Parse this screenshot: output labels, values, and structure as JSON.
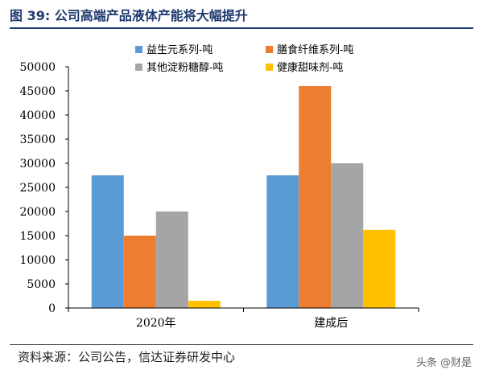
{
  "header": {
    "title": "图 39: 公司高端产品液体产能将大幅提升"
  },
  "chart_data": {
    "type": "bar",
    "categories": [
      "2020年",
      "建成后"
    ],
    "series": [
      {
        "name": "益生元系列-吨",
        "color": "#5b9bd5",
        "values": [
          27500,
          27500
        ]
      },
      {
        "name": "膳食纤维系列-吨",
        "color": "#ed7d31",
        "values": [
          15000,
          46000
        ]
      },
      {
        "name": "其他淀粉糖醇-吨",
        "color": "#a5a5a5",
        "values": [
          20000,
          30000
        ]
      },
      {
        "name": "健康甜味剂-吨",
        "color": "#ffc000",
        "values": [
          1500,
          16200
        ]
      }
    ],
    "ylim": [
      0,
      50000
    ],
    "yticks": [
      0,
      5000,
      10000,
      15000,
      20000,
      25000,
      30000,
      35000,
      40000,
      45000,
      50000
    ],
    "legend_position": "top",
    "grid": false
  },
  "footer": {
    "source": "资料来源：公司公告，信达证券研发中心",
    "watermark": "头条 @财是"
  }
}
